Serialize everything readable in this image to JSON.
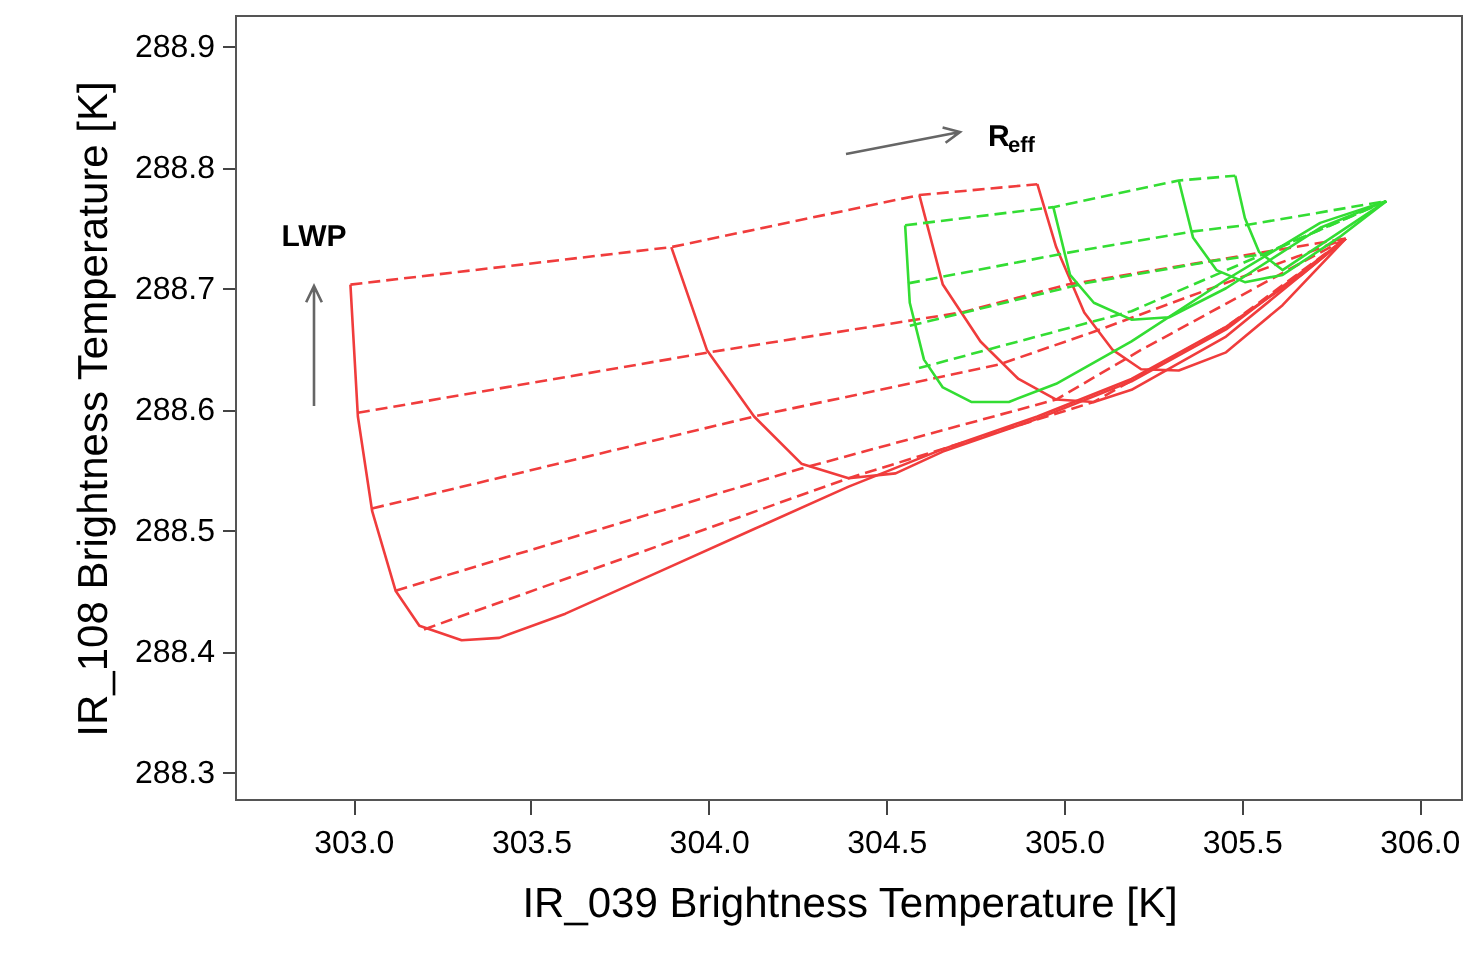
{
  "chart_data": {
    "type": "line",
    "xlabel": "IR_039 Brightness Temperature [K]",
    "ylabel": "IR_108 Brightness Temperature [K]",
    "xlim": [
      302.67,
      306.12
    ],
    "ylim": [
      288.277,
      288.925
    ],
    "xticks": [
      {
        "value": 303,
        "label": "303.0"
      },
      303.5,
      {
        "value": 304,
        "label": "304.0"
      },
      304.5,
      {
        "value": 305,
        "label": "305.0"
      },
      305.5,
      {
        "value": 306,
        "label": "306.0"
      }
    ],
    "yticks": [
      288.3,
      288.4,
      288.5,
      288.6,
      288.7,
      288.8,
      288.9
    ],
    "grid": false,
    "marker": "none",
    "annotations": [
      "LWP",
      "R$_{eff}$"
    ],
    "series": [
      {
        "color": "#f03c3c",
        "line_style": "solid",
        "x": [
          302.992,
          303.013,
          303.053,
          303.119,
          303.186,
          303.305,
          303.411,
          303.597,
          303.863,
          304.128,
          304.394,
          304.659,
          304.925,
          305.19,
          305.456,
          305.668,
          305.793
        ],
        "values": [
          288.703,
          288.594,
          288.516,
          288.45,
          288.421,
          288.409,
          288.411,
          288.431,
          288.466,
          288.501,
          288.536,
          288.567,
          288.594,
          288.625,
          288.668,
          288.711,
          288.741
        ]
      },
      {
        "color": "#f03c3c",
        "line_style": "solid",
        "x": [
          303.895,
          303.995,
          304.128,
          304.261,
          304.394,
          304.526,
          304.659,
          304.925,
          305.19,
          305.456,
          305.793
        ],
        "values": [
          288.734,
          288.649,
          288.594,
          288.555,
          288.543,
          288.547,
          288.565,
          288.592,
          288.623,
          288.666,
          288.741
        ]
      },
      {
        "color": "#f03c3c",
        "line_style": "solid",
        "x": [
          304.593,
          304.659,
          304.765,
          304.872,
          304.978,
          305.084,
          305.19,
          305.456,
          305.793
        ],
        "values": [
          288.777,
          288.703,
          288.656,
          288.625,
          288.608,
          288.606,
          288.616,
          288.66,
          288.741
        ]
      },
      {
        "color": "#f03c3c",
        "line_style": "solid",
        "x": [
          304.925,
          304.978,
          305.057,
          305.137,
          305.217,
          305.323,
          305.456,
          305.615,
          305.793
        ],
        "values": [
          288.786,
          288.734,
          288.68,
          288.649,
          288.633,
          288.632,
          288.647,
          288.686,
          288.741
        ]
      },
      {
        "color": "#f03c3c",
        "line_style": "dashed",
        "x": [
          302.992,
          303.895,
          304.593,
          304.925
        ],
        "values": [
          288.703,
          288.734,
          288.777,
          288.786
        ]
      },
      {
        "color": "#f03c3c",
        "line_style": "dashed",
        "x": [
          303.013,
          304.001,
          304.712,
          305.01,
          305.793
        ],
        "values": [
          288.597,
          288.647,
          288.68,
          288.703,
          288.741
        ]
      },
      {
        "color": "#f03c3c",
        "line_style": "dashed",
        "x": [
          303.053,
          304.128,
          304.818,
          305.084,
          305.793
        ],
        "values": [
          288.518,
          288.594,
          288.637,
          288.664,
          288.741
        ]
      },
      {
        "color": "#f03c3c",
        "line_style": "dashed",
        "x": [
          303.119,
          304.261,
          304.978,
          305.217,
          305.793
        ],
        "values": [
          288.45,
          288.551,
          288.608,
          288.649,
          288.741
        ]
      },
      {
        "color": "#f03c3c",
        "line_style": "dashed",
        "x": [
          303.199,
          304.394,
          305.084,
          305.456,
          305.793
        ],
        "values": [
          288.418,
          288.543,
          288.606,
          288.668,
          288.741
        ]
      },
      {
        "color": "#33dd33",
        "line_style": "solid",
        "x": [
          304.553,
          304.566,
          304.606,
          304.659,
          304.739,
          304.845,
          304.978,
          305.19,
          305.456,
          305.721,
          305.907
        ],
        "values": [
          288.752,
          288.688,
          288.641,
          288.618,
          288.606,
          288.606,
          288.621,
          288.656,
          288.707,
          288.754,
          288.772
        ]
      },
      {
        "color": "#33dd33",
        "line_style": "solid",
        "x": [
          304.97,
          305.017,
          305.084,
          305.19,
          305.296,
          305.456,
          305.721,
          305.907
        ],
        "values": [
          288.767,
          288.711,
          288.688,
          288.674,
          288.676,
          288.7,
          288.75,
          288.772
        ]
      },
      {
        "color": "#33dd33",
        "line_style": "solid",
        "x": [
          305.323,
          305.363,
          305.429,
          305.509,
          305.615,
          305.774,
          305.907
        ],
        "values": [
          288.789,
          288.742,
          288.715,
          288.705,
          288.711,
          288.742,
          288.772
        ]
      },
      {
        "color": "#33dd33",
        "line_style": "solid",
        "x": [
          305.482,
          305.509,
          305.549,
          305.615,
          305.907
        ],
        "values": [
          288.793,
          288.758,
          288.73,
          288.715,
          288.772
        ]
      },
      {
        "color": "#33dd33",
        "line_style": "dashed",
        "x": [
          304.553,
          304.97,
          305.323,
          305.482
        ],
        "values": [
          288.752,
          288.767,
          288.789,
          288.793
        ]
      },
      {
        "color": "#33dd33",
        "line_style": "dashed",
        "x": [
          304.561,
          305.004,
          305.363,
          305.509,
          305.907
        ],
        "values": [
          288.704,
          288.729,
          288.747,
          288.752,
          288.772
        ]
      },
      {
        "color": "#33dd33",
        "line_style": "dashed",
        "x": [
          304.566,
          305.057,
          305.429,
          305.562,
          305.907
        ],
        "values": [
          288.669,
          288.704,
          288.723,
          288.728,
          288.772
        ]
      },
      {
        "color": "#33dd33",
        "line_style": "dashed",
        "x": [
          304.592,
          305.19,
          305.907
        ],
        "values": [
          288.634,
          288.681,
          288.772
        ]
      }
    ]
  }
}
